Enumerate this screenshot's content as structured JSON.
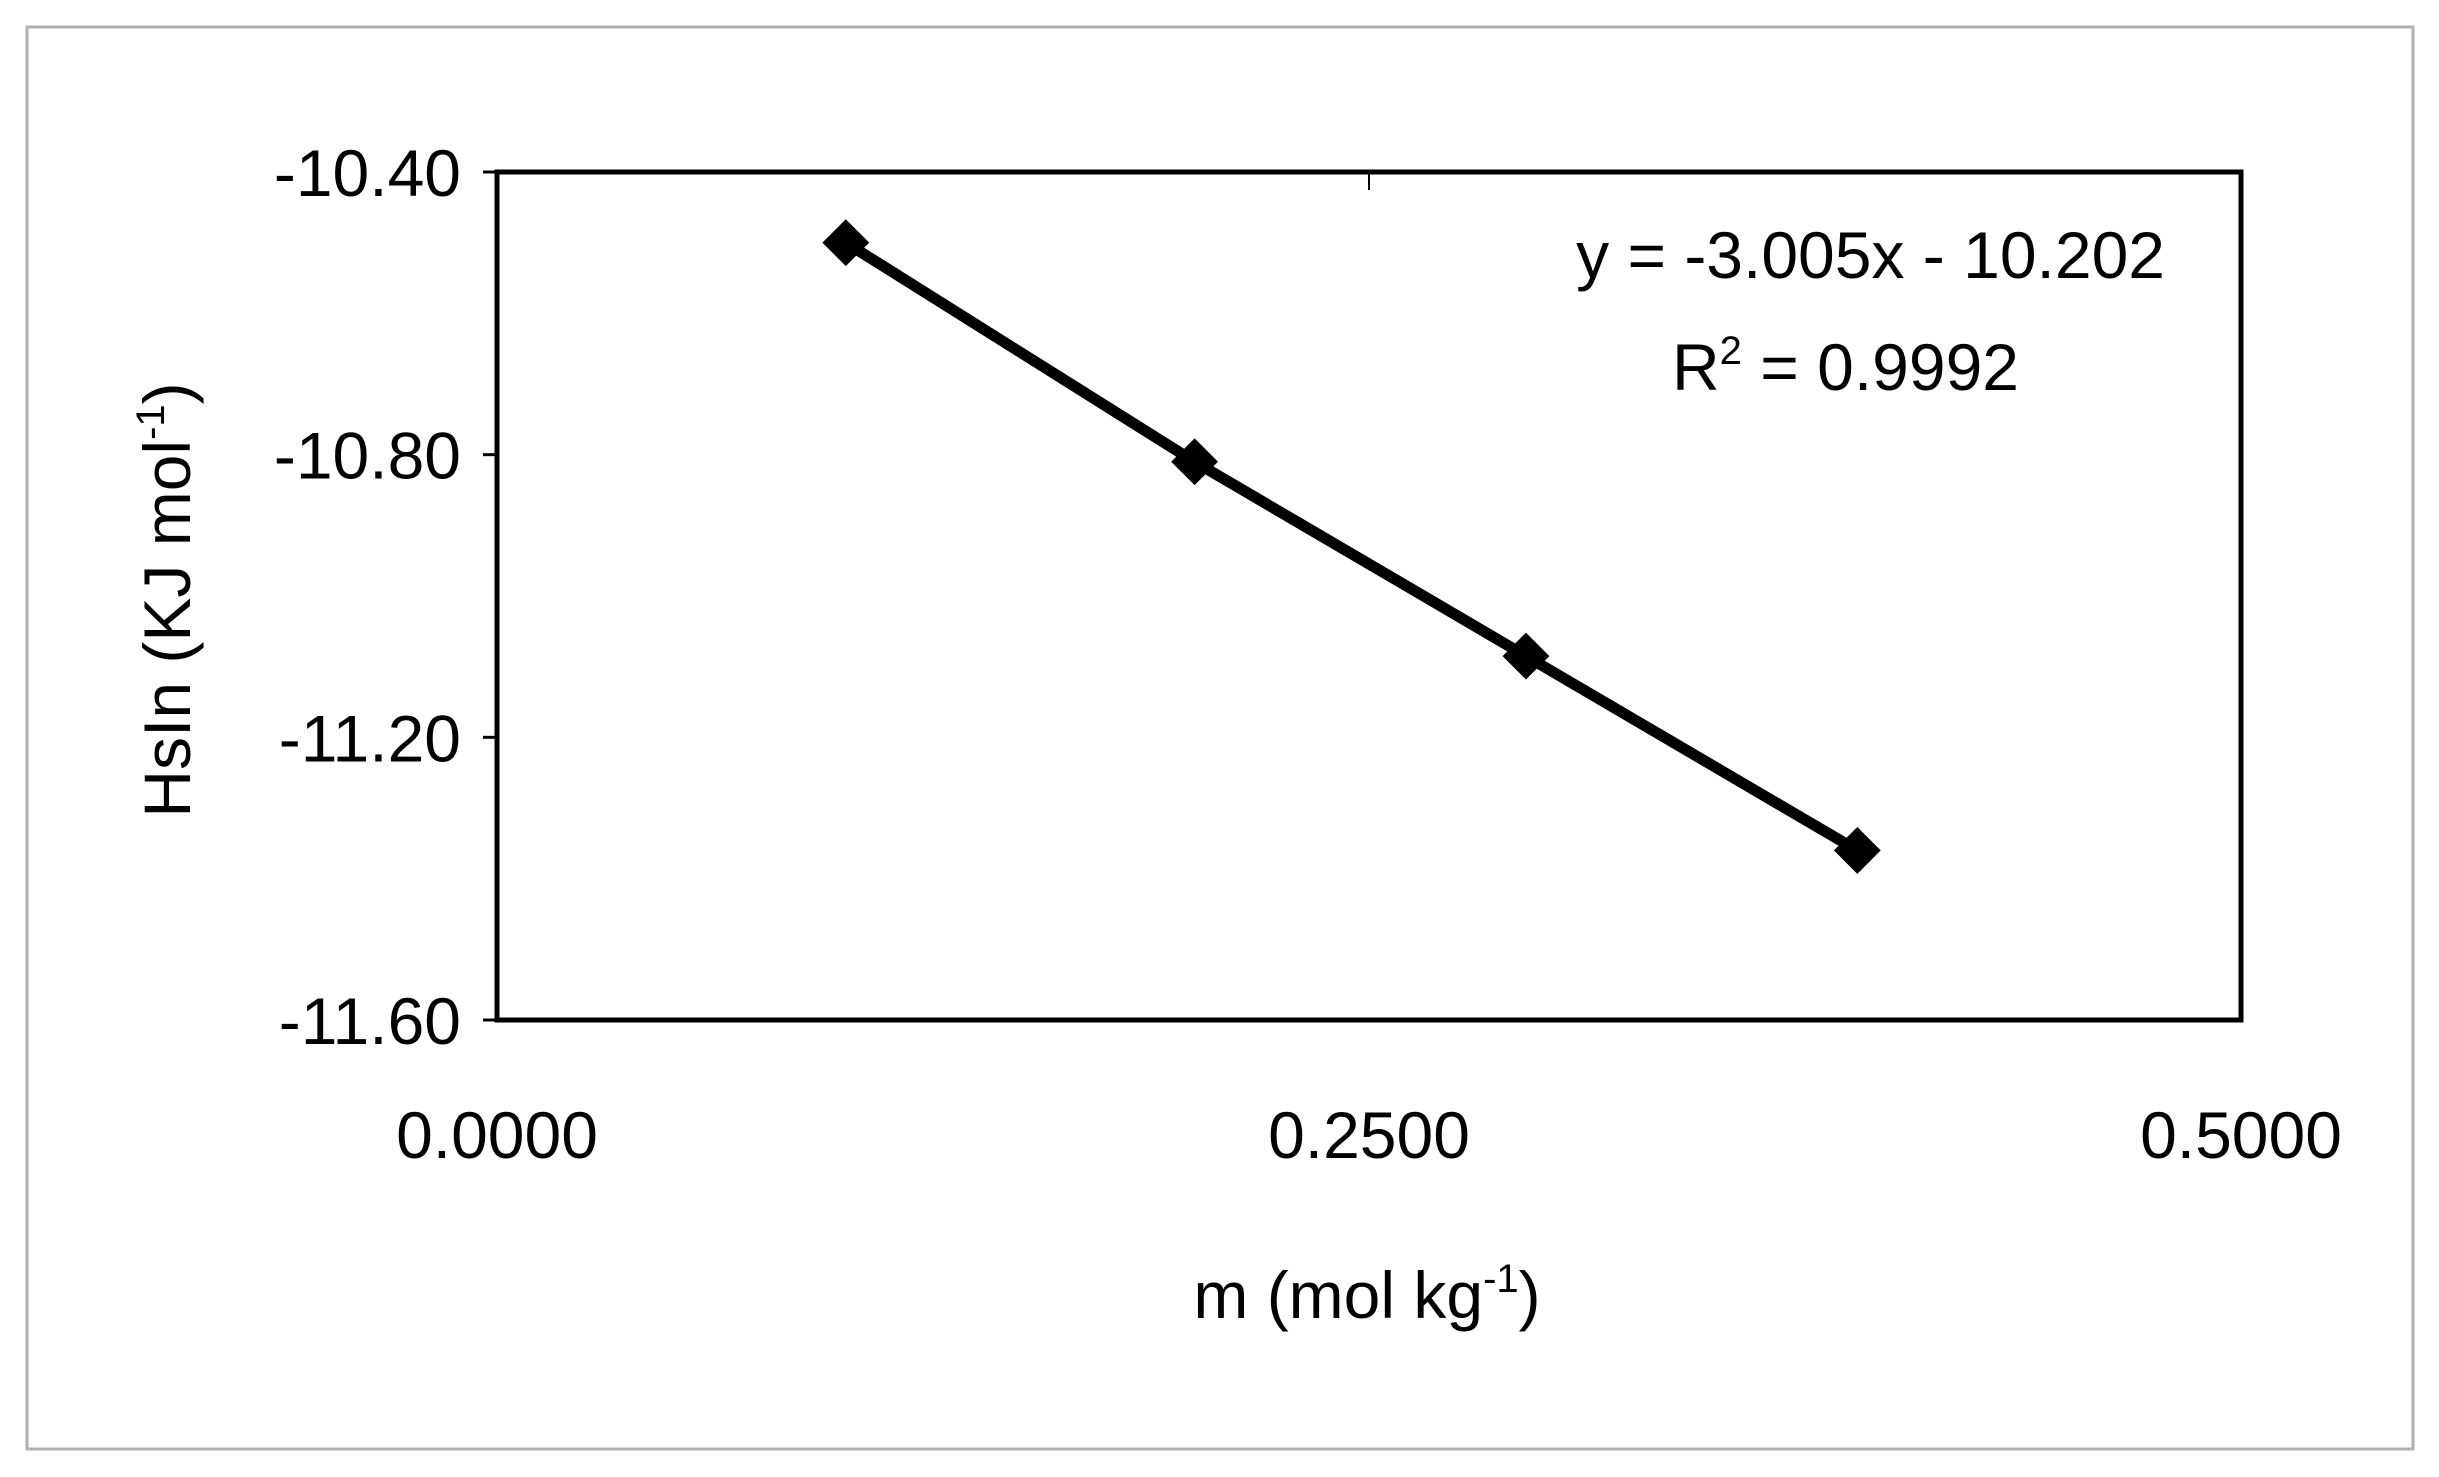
{
  "chart_data": {
    "type": "line",
    "title": "",
    "xlabel": {
      "base": "m (mol kg",
      "sup": "-1",
      "tail": ")"
    },
    "ylabel": {
      "base": "HsIn (KJ mol",
      "sup": "-1",
      "tail": ")"
    },
    "xlim": [
      0,
      0.5
    ],
    "ylim": [
      -11.6,
      -10.4
    ],
    "x_ticks": [
      0,
      0.25,
      0.5
    ],
    "x_tick_labels": [
      "0.0000",
      "0.2500",
      "0.5000"
    ],
    "y_ticks": [
      -10.4,
      -10.8,
      -11.2,
      -11.6
    ],
    "y_tick_labels": [
      "-10.40",
      "-10.80",
      "-11.20",
      "-11.60"
    ],
    "grid": false,
    "series": [
      {
        "marker": "diamond",
        "color": "#000000",
        "x": [
          0.1,
          0.2,
          0.295,
          0.39
        ],
        "y": [
          -10.5,
          -10.81,
          -11.085,
          -11.36
        ]
      }
    ],
    "annotations": {
      "equation": "y = -3.005x - 10.202",
      "r2_base": "R",
      "r2_sup": "2",
      "r2_value": " = 0.9992"
    }
  }
}
